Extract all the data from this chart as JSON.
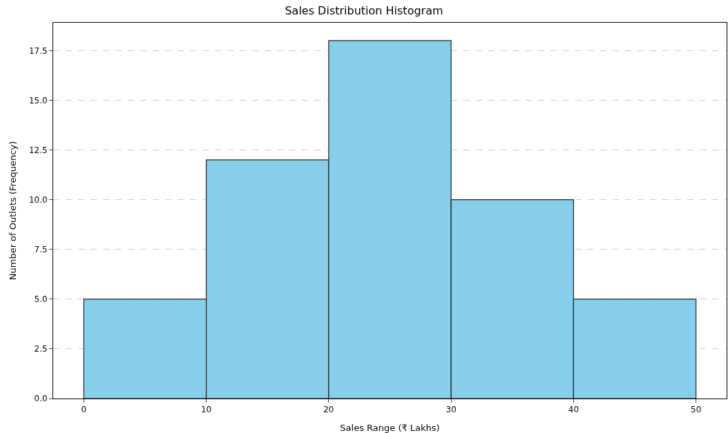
{
  "chart_data": {
    "type": "histogram",
    "title": "Sales Distribution Histogram",
    "xlabel": "Sales Range (₹ Lakhs)",
    "ylabel": "Number of Outlets (Frequency)",
    "bins": [
      0,
      10,
      20,
      30,
      40,
      50
    ],
    "values": [
      5,
      12,
      18,
      10,
      5
    ],
    "color": "#87ceeb",
    "xlim": [
      -2.5,
      52.5
    ],
    "xticks": [
      0,
      10,
      20,
      30,
      40,
      50
    ],
    "ylim": [
      0,
      18.9
    ],
    "yticks": [
      {
        "value": 0,
        "label": "0.0"
      },
      {
        "value": 2.5,
        "label": "2.5"
      },
      {
        "value": 5,
        "label": "5.0"
      },
      {
        "value": 7.5,
        "label": "7.5"
      },
      {
        "value": 10,
        "label": "10.0"
      },
      {
        "value": 12.5,
        "label": "12.5"
      },
      {
        "value": 15,
        "label": "15.0"
      },
      {
        "value": 17.5,
        "label": "17.5"
      }
    ],
    "grid": "y",
    "line_style": "dashed"
  }
}
